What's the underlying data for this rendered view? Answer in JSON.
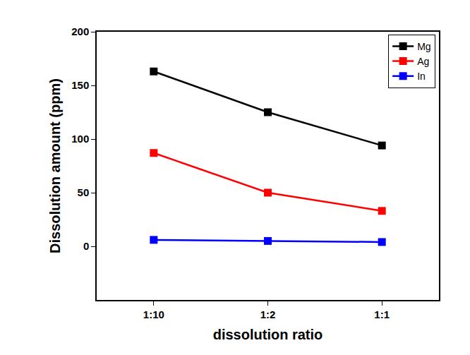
{
  "chart_data": {
    "type": "line",
    "x_label": "dissolution ratio",
    "y_label": "Dissolution amount (ppm)",
    "categories": [
      "1:10",
      "1:2",
      "1:1"
    ],
    "series": [
      {
        "name": "Mg",
        "color": "#000000",
        "values": [
          163,
          125,
          94
        ]
      },
      {
        "name": "Ag",
        "color": "#ff0000",
        "values": [
          87,
          50,
          33
        ]
      },
      {
        "name": "In",
        "color": "#0000ff",
        "values": [
          6,
          5,
          4
        ]
      }
    ],
    "ylim": [
      -50,
      200
    ],
    "yticks": [
      0,
      50,
      100,
      150,
      200
    ],
    "grid": false,
    "legend": "top right",
    "marker": "square"
  }
}
